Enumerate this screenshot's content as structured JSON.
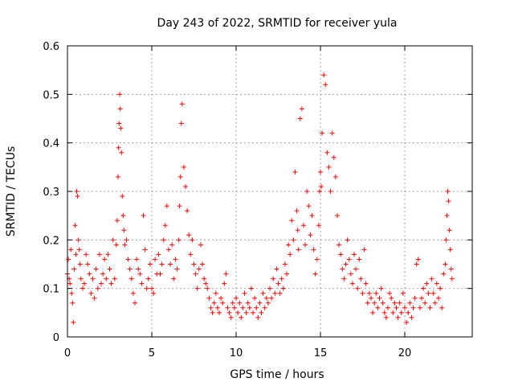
{
  "chart_data": {
    "type": "scatter",
    "title": "Day 243 of 2022, SRMTID for receiver yula",
    "xlabel": "GPS time / hours",
    "ylabel": "SRMTID / TECUs",
    "xlim": [
      0,
      24
    ],
    "ylim": [
      0,
      0.6
    ],
    "xticks": [
      0,
      5,
      10,
      15,
      20
    ],
    "xtick_labels": [
      "0",
      "5",
      "10",
      "15",
      "20"
    ],
    "yticks": [
      0,
      0.1,
      0.2,
      0.3,
      0.4,
      0.5,
      0.6
    ],
    "ytick_labels": [
      "0",
      "0.1",
      "0.2",
      "0.3",
      "0.4",
      "0.5",
      "0.6"
    ],
    "grid": true,
    "marker": "+",
    "color": "#ff0000",
    "series": [
      {
        "name": "SRMTID",
        "x": [
          0.0,
          0.05,
          0.1,
          0.15,
          0.2,
          0.25,
          0.3,
          0.35,
          0.4,
          0.45,
          0.5,
          0.55,
          0.6,
          0.65,
          0.7,
          0.75,
          0.8,
          0.9,
          1.0,
          1.1,
          1.2,
          1.3,
          1.4,
          1.5,
          1.6,
          1.7,
          1.8,
          1.9,
          2.0,
          2.1,
          2.2,
          2.3,
          2.4,
          2.5,
          2.6,
          2.7,
          2.8,
          2.9,
          2.95,
          3.0,
          3.03,
          3.06,
          3.1,
          3.13,
          3.16,
          3.2,
          3.25,
          3.3,
          3.35,
          3.4,
          3.5,
          3.6,
          3.7,
          3.8,
          3.9,
          4.0,
          4.1,
          4.2,
          4.3,
          4.4,
          4.5,
          4.6,
          4.7,
          4.8,
          4.9,
          5.0,
          5.1,
          5.2,
          5.3,
          5.4,
          5.5,
          5.6,
          5.7,
          5.8,
          5.9,
          6.0,
          6.1,
          6.2,
          6.3,
          6.4,
          6.5,
          6.6,
          6.65,
          6.7,
          6.75,
          6.8,
          6.9,
          7.0,
          7.1,
          7.2,
          7.3,
          7.4,
          7.5,
          7.6,
          7.7,
          7.8,
          7.9,
          8.0,
          8.1,
          8.2,
          8.3,
          8.4,
          8.5,
          8.6,
          8.7,
          8.8,
          8.9,
          9.0,
          9.1,
          9.2,
          9.3,
          9.4,
          9.5,
          9.6,
          9.7,
          9.8,
          9.9,
          10.0,
          10.1,
          10.2,
          10.3,
          10.4,
          10.5,
          10.6,
          10.7,
          10.8,
          10.9,
          11.0,
          11.1,
          11.2,
          11.3,
          11.4,
          11.5,
          11.6,
          11.7,
          11.8,
          11.9,
          12.0,
          12.1,
          12.2,
          12.3,
          12.4,
          12.5,
          12.6,
          12.7,
          12.8,
          12.9,
          13.0,
          13.1,
          13.2,
          13.3,
          13.4,
          13.5,
          13.6,
          13.65,
          13.7,
          13.8,
          13.9,
          14.0,
          14.1,
          14.2,
          14.3,
          14.4,
          14.5,
          14.6,
          14.7,
          14.8,
          14.9,
          14.95,
          15.0,
          15.05,
          15.1,
          15.2,
          15.3,
          15.4,
          15.5,
          15.6,
          15.7,
          15.8,
          15.9,
          16.0,
          16.1,
          16.2,
          16.3,
          16.4,
          16.5,
          16.6,
          16.7,
          16.8,
          16.9,
          17.0,
          17.1,
          17.2,
          17.3,
          17.4,
          17.5,
          17.6,
          17.7,
          17.8,
          17.9,
          18.0,
          18.1,
          18.2,
          18.3,
          18.4,
          18.5,
          18.6,
          18.7,
          18.8,
          18.9,
          19.0,
          19.1,
          19.2,
          19.3,
          19.4,
          19.5,
          19.6,
          19.7,
          19.8,
          19.9,
          20.0,
          20.1,
          20.2,
          20.3,
          20.4,
          20.5,
          20.6,
          20.7,
          20.8,
          20.9,
          21.0,
          21.1,
          21.2,
          21.3,
          21.4,
          21.5,
          21.6,
          21.7,
          21.8,
          21.9,
          22.0,
          22.1,
          22.2,
          22.3,
          22.4,
          22.45,
          22.5,
          22.55,
          22.6,
          22.65,
          22.7,
          22.75,
          22.8
        ],
        "y": [
          0.13,
          0.16,
          0.12,
          0.11,
          0.18,
          0.09,
          0.07,
          0.03,
          0.14,
          0.23,
          0.17,
          0.3,
          0.29,
          0.2,
          0.18,
          0.15,
          0.12,
          0.1,
          0.11,
          0.17,
          0.15,
          0.13,
          0.09,
          0.12,
          0.08,
          0.14,
          0.1,
          0.17,
          0.11,
          0.13,
          0.16,
          0.12,
          0.17,
          0.14,
          0.11,
          0.2,
          0.12,
          0.19,
          0.24,
          0.33,
          0.39,
          0.44,
          0.5,
          0.47,
          0.43,
          0.38,
          0.29,
          0.25,
          0.22,
          0.19,
          0.2,
          0.16,
          0.14,
          0.12,
          0.09,
          0.07,
          0.16,
          0.14,
          0.13,
          0.11,
          0.25,
          0.18,
          0.1,
          0.12,
          0.15,
          0.1,
          0.09,
          0.16,
          0.13,
          0.17,
          0.13,
          0.15,
          0.2,
          0.23,
          0.27,
          0.18,
          0.15,
          0.19,
          0.12,
          0.16,
          0.14,
          0.2,
          0.27,
          0.33,
          0.44,
          0.48,
          0.35,
          0.31,
          0.26,
          0.21,
          0.17,
          0.2,
          0.15,
          0.13,
          0.1,
          0.14,
          0.19,
          0.15,
          0.12,
          0.11,
          0.1,
          0.08,
          0.06,
          0.05,
          0.07,
          0.09,
          0.06,
          0.05,
          0.08,
          0.07,
          0.11,
          0.13,
          0.06,
          0.05,
          0.04,
          0.07,
          0.06,
          0.08,
          0.05,
          0.07,
          0.04,
          0.06,
          0.09,
          0.05,
          0.07,
          0.06,
          0.1,
          0.05,
          0.08,
          0.06,
          0.04,
          0.07,
          0.05,
          0.09,
          0.06,
          0.08,
          0.07,
          0.1,
          0.08,
          0.12,
          0.09,
          0.14,
          0.11,
          0.09,
          0.12,
          0.1,
          0.15,
          0.13,
          0.19,
          0.17,
          0.24,
          0.2,
          0.34,
          0.26,
          0.22,
          0.18,
          0.45,
          0.47,
          0.23,
          0.19,
          0.3,
          0.27,
          0.21,
          0.25,
          0.18,
          0.13,
          0.16,
          0.23,
          0.3,
          0.34,
          0.31,
          0.42,
          0.54,
          0.52,
          0.38,
          0.35,
          0.3,
          0.42,
          0.37,
          0.33,
          0.25,
          0.19,
          0.17,
          0.14,
          0.12,
          0.15,
          0.2,
          0.16,
          0.13,
          0.11,
          0.17,
          0.14,
          0.1,
          0.16,
          0.12,
          0.09,
          0.18,
          0.11,
          0.07,
          0.09,
          0.08,
          0.05,
          0.07,
          0.09,
          0.06,
          0.08,
          0.1,
          0.07,
          0.05,
          0.04,
          0.06,
          0.09,
          0.08,
          0.05,
          0.07,
          0.06,
          0.04,
          0.07,
          0.05,
          0.09,
          0.06,
          0.03,
          0.05,
          0.07,
          0.04,
          0.06,
          0.08,
          0.15,
          0.16,
          0.06,
          0.08,
          0.1,
          0.07,
          0.11,
          0.09,
          0.06,
          0.12,
          0.09,
          0.07,
          0.11,
          0.08,
          0.1,
          0.06,
          0.13,
          0.15,
          0.2,
          0.25,
          0.3,
          0.28,
          0.22,
          0.18,
          0.14,
          0.12
        ]
      }
    ]
  }
}
